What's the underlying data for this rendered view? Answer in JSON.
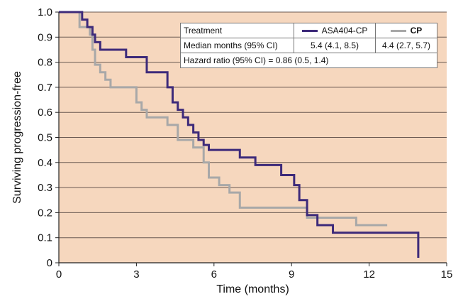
{
  "chart_data": {
    "type": "line",
    "step": true,
    "xlabel": "Time (months)",
    "ylabel": "Surviving progression-free",
    "xlim": [
      0,
      15
    ],
    "ylim": [
      0,
      1.0
    ],
    "x_ticks": [
      0,
      3,
      6,
      9,
      12,
      15
    ],
    "y_ticks": [
      0,
      0.1,
      0.2,
      0.3,
      0.4,
      0.5,
      0.6,
      0.7,
      0.8,
      0.9,
      1.0
    ],
    "grid": "horizontal",
    "background": "#f6d7be",
    "series": [
      {
        "name": "ASA404-CP",
        "color": "#3d2a7a",
        "x": [
          0,
          0.9,
          1.1,
          1.3,
          1.4,
          1.6,
          2.6,
          3.4,
          4.2,
          4.4,
          4.6,
          4.8,
          5.0,
          5.2,
          5.4,
          5.6,
          5.8,
          7.0,
          7.6,
          8.6,
          9.1,
          9.3,
          9.6,
          10.0,
          10.6,
          13.9,
          13.9
        ],
        "y": [
          1.0,
          0.97,
          0.94,
          0.91,
          0.88,
          0.85,
          0.82,
          0.76,
          0.7,
          0.64,
          0.61,
          0.58,
          0.55,
          0.52,
          0.49,
          0.47,
          0.45,
          0.42,
          0.39,
          0.35,
          0.31,
          0.25,
          0.19,
          0.15,
          0.12,
          0.12,
          0.02
        ]
      },
      {
        "name": "CP",
        "color": "#a8a8a8",
        "x": [
          0,
          0.8,
          1.2,
          1.3,
          1.4,
          1.6,
          1.8,
          2.0,
          3.0,
          3.2,
          3.4,
          4.2,
          4.6,
          5.2,
          5.6,
          5.8,
          6.2,
          6.6,
          7.0,
          8.2,
          9.6,
          9.8,
          11.5,
          12.7
        ],
        "y": [
          1.0,
          0.94,
          0.91,
          0.85,
          0.79,
          0.76,
          0.73,
          0.7,
          0.64,
          0.61,
          0.58,
          0.55,
          0.49,
          0.46,
          0.4,
          0.34,
          0.31,
          0.28,
          0.22,
          0.22,
          0.18,
          0.18,
          0.15,
          0.15
        ]
      }
    ],
    "legend": {
      "header": "Treatment",
      "arm1": "ASA404-CP",
      "arm2": "CP",
      "median_label": "Median months (95% CI)",
      "median_arm1": "5.4 (4.1, 8.5)",
      "median_arm2": "4.4 (2.7, 5.7)",
      "hazard_ratio": "Hazard ratio (95% CI) = 0.86 (0.5, 1.4)"
    }
  }
}
